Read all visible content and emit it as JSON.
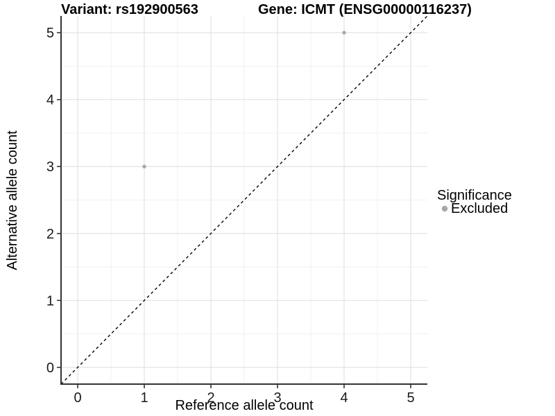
{
  "chart_data": {
    "type": "scatter",
    "title_left": "Variant: rs192900563",
    "title_right": "Gene: ICMT (ENSG00000116237)",
    "xlabel": "Reference allele count",
    "ylabel": "Alternative allele count",
    "xlim": [
      -0.25,
      5.25
    ],
    "ylim": [
      -0.25,
      5.25
    ],
    "xticks": [
      0,
      1,
      2,
      3,
      4,
      5
    ],
    "yticks": [
      0,
      1,
      2,
      3,
      4,
      5
    ],
    "minor_step": 0.5,
    "grid": "major+minor",
    "identity_line": {
      "style": "dashed",
      "equation": "y = x"
    },
    "series": [
      {
        "name": "Excluded",
        "color": "#a8a8a8",
        "points": [
          {
            "x": 1,
            "y": 3
          },
          {
            "x": 4,
            "y": 5
          }
        ]
      }
    ],
    "legend": {
      "title": "Significance",
      "position": "right",
      "entries": [
        {
          "label": "Excluded",
          "color": "#a8a8a8"
        }
      ]
    },
    "colors": {
      "background": "#ffffff",
      "grid_major": "#e3e3e3",
      "grid_minor": "#f1f1f1",
      "axis_line": "#333333",
      "tick_mark": "#333333",
      "tick_text": "#1a1a1a",
      "identity_line": "#000000",
      "point": "#a8a8a8"
    }
  }
}
